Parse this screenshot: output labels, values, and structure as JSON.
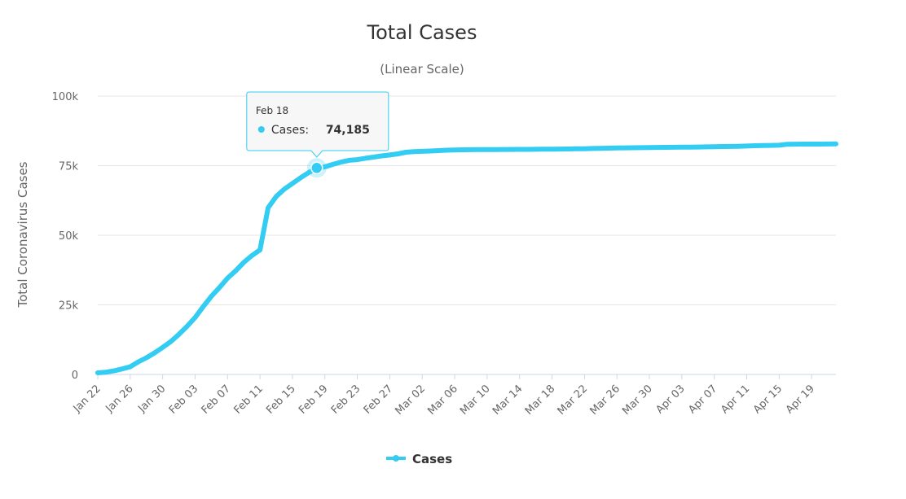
{
  "chart_data": {
    "type": "line",
    "title": "Total Cases",
    "subtitle": "(Linear Scale)",
    "xlabel": "",
    "ylabel": "Total Coronavirus Cases",
    "ylim": [
      0,
      100000
    ],
    "y_ticks": [
      0,
      25000,
      50000,
      75000,
      100000
    ],
    "y_tick_labels": [
      "0",
      "25k",
      "50k",
      "75k",
      "100k"
    ],
    "x_tick_labels": [
      "Jan 22",
      "Jan 26",
      "Jan 30",
      "Feb 03",
      "Feb 07",
      "Feb 11",
      "Feb 15",
      "Feb 19",
      "Feb 23",
      "Feb 27",
      "Mar 02",
      "Mar 06",
      "Mar 10",
      "Mar 14",
      "Mar 18",
      "Mar 22",
      "Mar 26",
      "Mar 30",
      "Apr 03",
      "Apr 07",
      "Apr 11",
      "Apr 15",
      "Apr 19"
    ],
    "grid": true,
    "legend_position": "bottom-center",
    "series": [
      {
        "name": "Cases",
        "color": "#33ccf2",
        "x": [
          "Jan 22",
          "Jan 23",
          "Jan 24",
          "Jan 25",
          "Jan 26",
          "Jan 27",
          "Jan 28",
          "Jan 29",
          "Jan 30",
          "Jan 31",
          "Feb 01",
          "Feb 02",
          "Feb 03",
          "Feb 04",
          "Feb 05",
          "Feb 06",
          "Feb 07",
          "Feb 08",
          "Feb 09",
          "Feb 10",
          "Feb 11",
          "Feb 12",
          "Feb 13",
          "Feb 14",
          "Feb 15",
          "Feb 16",
          "Feb 17",
          "Feb 18",
          "Feb 19",
          "Feb 20",
          "Feb 21",
          "Feb 22",
          "Feb 23",
          "Feb 24",
          "Feb 25",
          "Feb 26",
          "Feb 27",
          "Feb 28",
          "Feb 29",
          "Mar 01",
          "Mar 02",
          "Mar 03",
          "Mar 04",
          "Mar 05",
          "Mar 06",
          "Mar 07",
          "Mar 08",
          "Mar 09",
          "Mar 10",
          "Mar 11",
          "Mar 12",
          "Mar 13",
          "Mar 14",
          "Mar 15",
          "Mar 16",
          "Mar 17",
          "Mar 18",
          "Mar 19",
          "Mar 20",
          "Mar 21",
          "Mar 22",
          "Mar 23",
          "Mar 24",
          "Mar 25",
          "Mar 26",
          "Mar 27",
          "Mar 28",
          "Mar 29",
          "Mar 30",
          "Mar 31",
          "Apr 01",
          "Apr 02",
          "Apr 03",
          "Apr 04",
          "Apr 05",
          "Apr 06",
          "Apr 07",
          "Apr 08",
          "Apr 09",
          "Apr 10",
          "Apr 11",
          "Apr 12",
          "Apr 13",
          "Apr 14",
          "Apr 15",
          "Apr 16",
          "Apr 17",
          "Apr 18",
          "Apr 19",
          "Apr 20",
          "Apr 21",
          "Apr 22"
        ],
        "values": [
          571,
          830,
          1297,
          1985,
          2761,
          4537,
          5997,
          7736,
          9720,
          11821,
          14411,
          17238,
          20471,
          24363,
          28060,
          31211,
          34598,
          37251,
          40235,
          42708,
          44730,
          59882,
          63932,
          66576,
          68584,
          70635,
          72528,
          74185,
          74576,
          75465,
          76288,
          76936,
          77150,
          77658,
          78065,
          78498,
          78824,
          79251,
          79826,
          80026,
          80151,
          80270,
          80409,
          80552,
          80651,
          80695,
          80735,
          80754,
          80778,
          80793,
          80813,
          80824,
          80844,
          80860,
          80881,
          80894,
          80928,
          80967,
          81008,
          81054,
          81093,
          81171,
          81218,
          81285,
          81340,
          81394,
          81439,
          81470,
          81518,
          81554,
          81589,
          81620,
          81639,
          81669,
          81708,
          81740,
          81802,
          81865,
          81907,
          81953,
          82052,
          82160,
          82249,
          82295,
          82341,
          82692,
          82719,
          82735,
          82747,
          82758,
          82788,
          82804
        ]
      }
    ],
    "tooltip": {
      "date": "Feb 18",
      "label": "Cases:",
      "value": "74,185",
      "point_index": 27
    }
  }
}
